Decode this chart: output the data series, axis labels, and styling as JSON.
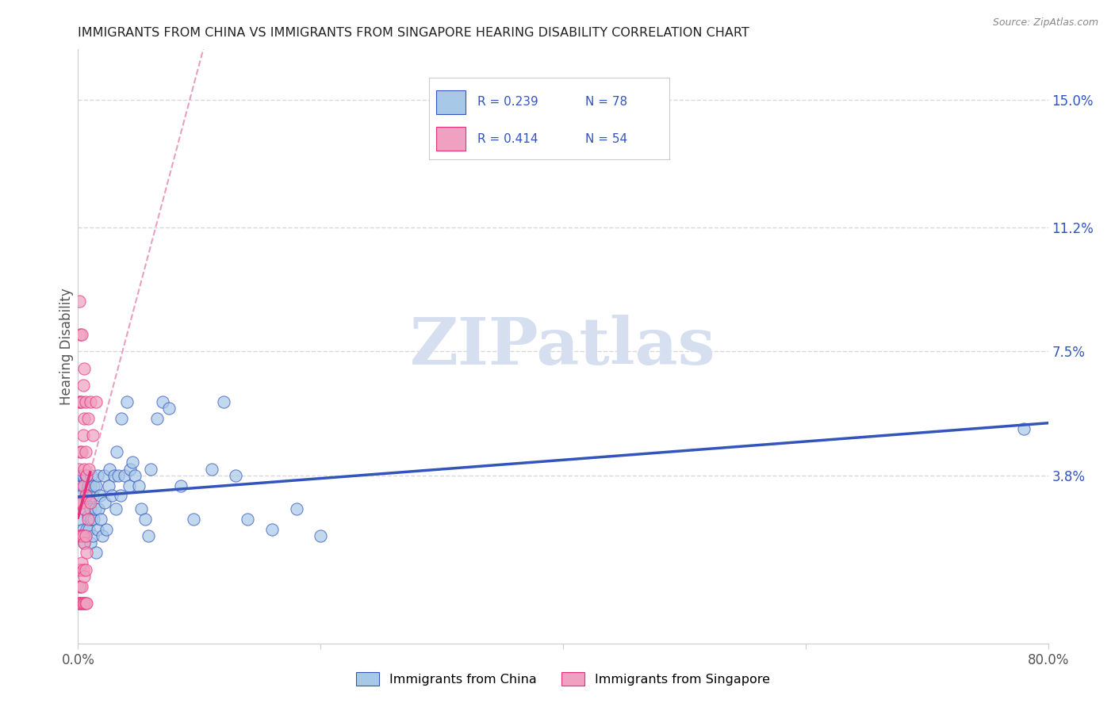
{
  "title": "IMMIGRANTS FROM CHINA VS IMMIGRANTS FROM SINGAPORE HEARING DISABILITY CORRELATION CHART",
  "source": "Source: ZipAtlas.com",
  "ylabel": "Hearing Disability",
  "right_yticks": [
    0.038,
    0.075,
    0.112,
    0.15
  ],
  "right_yticklabels": [
    "3.8%",
    "7.5%",
    "11.2%",
    "15.0%"
  ],
  "china_color": "#a8c8e8",
  "singapore_color": "#f0a0c0",
  "china_trend_color": "#3355bb",
  "singapore_trend_color": "#e8307a",
  "singapore_dashed_color": "#e8a0c0",
  "background_color": "#ffffff",
  "grid_color": "#d8d8d8",
  "xlim": [
    0.0,
    0.8
  ],
  "ylim": [
    -0.012,
    0.165
  ],
  "china_x": [
    0.001,
    0.001,
    0.002,
    0.002,
    0.002,
    0.003,
    0.003,
    0.003,
    0.004,
    0.004,
    0.004,
    0.005,
    0.005,
    0.005,
    0.006,
    0.006,
    0.006,
    0.007,
    0.007,
    0.007,
    0.008,
    0.008,
    0.009,
    0.009,
    0.01,
    0.01,
    0.01,
    0.011,
    0.011,
    0.012,
    0.012,
    0.013,
    0.013,
    0.014,
    0.015,
    0.015,
    0.016,
    0.016,
    0.017,
    0.018,
    0.019,
    0.02,
    0.021,
    0.022,
    0.023,
    0.025,
    0.026,
    0.028,
    0.03,
    0.031,
    0.032,
    0.033,
    0.035,
    0.036,
    0.038,
    0.04,
    0.042,
    0.043,
    0.045,
    0.047,
    0.05,
    0.052,
    0.055,
    0.058,
    0.06,
    0.065,
    0.07,
    0.075,
    0.085,
    0.095,
    0.11,
    0.12,
    0.13,
    0.14,
    0.16,
    0.18,
    0.2,
    0.78
  ],
  "china_y": [
    0.035,
    0.032,
    0.025,
    0.03,
    0.038,
    0.02,
    0.032,
    0.038,
    0.022,
    0.03,
    0.038,
    0.018,
    0.028,
    0.035,
    0.02,
    0.03,
    0.038,
    0.022,
    0.032,
    0.038,
    0.026,
    0.035,
    0.022,
    0.03,
    0.018,
    0.028,
    0.035,
    0.025,
    0.038,
    0.02,
    0.032,
    0.025,
    0.035,
    0.028,
    0.015,
    0.035,
    0.022,
    0.038,
    0.028,
    0.032,
    0.025,
    0.02,
    0.038,
    0.03,
    0.022,
    0.035,
    0.04,
    0.032,
    0.038,
    0.028,
    0.045,
    0.038,
    0.032,
    0.055,
    0.038,
    0.06,
    0.035,
    0.04,
    0.042,
    0.038,
    0.035,
    0.028,
    0.025,
    0.02,
    0.04,
    0.055,
    0.06,
    0.058,
    0.035,
    0.025,
    0.04,
    0.06,
    0.038,
    0.025,
    0.022,
    0.028,
    0.02,
    0.052
  ],
  "singapore_x": [
    0.001,
    0.001,
    0.001,
    0.001,
    0.001,
    0.001,
    0.001,
    0.001,
    0.001,
    0.002,
    0.002,
    0.002,
    0.002,
    0.002,
    0.002,
    0.002,
    0.002,
    0.003,
    0.003,
    0.003,
    0.003,
    0.003,
    0.003,
    0.003,
    0.003,
    0.004,
    0.004,
    0.004,
    0.004,
    0.004,
    0.004,
    0.005,
    0.005,
    0.005,
    0.005,
    0.005,
    0.005,
    0.005,
    0.006,
    0.006,
    0.006,
    0.006,
    0.006,
    0.006,
    0.007,
    0.007,
    0.007,
    0.008,
    0.008,
    0.009,
    0.01,
    0.01,
    0.012,
    0.015
  ],
  "singapore_y": [
    0.0,
    0.0,
    0.005,
    0.01,
    0.02,
    0.03,
    0.04,
    0.06,
    0.09,
    0.0,
    0.005,
    0.01,
    0.02,
    0.03,
    0.045,
    0.06,
    0.08,
    0.0,
    0.005,
    0.012,
    0.02,
    0.03,
    0.045,
    0.06,
    0.08,
    0.0,
    0.01,
    0.02,
    0.035,
    0.05,
    0.065,
    0.0,
    0.008,
    0.018,
    0.028,
    0.04,
    0.055,
    0.07,
    0.0,
    0.01,
    0.02,
    0.032,
    0.045,
    0.06,
    0.0,
    0.015,
    0.038,
    0.025,
    0.055,
    0.04,
    0.03,
    0.06,
    0.05,
    0.06
  ],
  "watermark_text": "ZIPatlas",
  "watermark_color": "#d5dff0"
}
